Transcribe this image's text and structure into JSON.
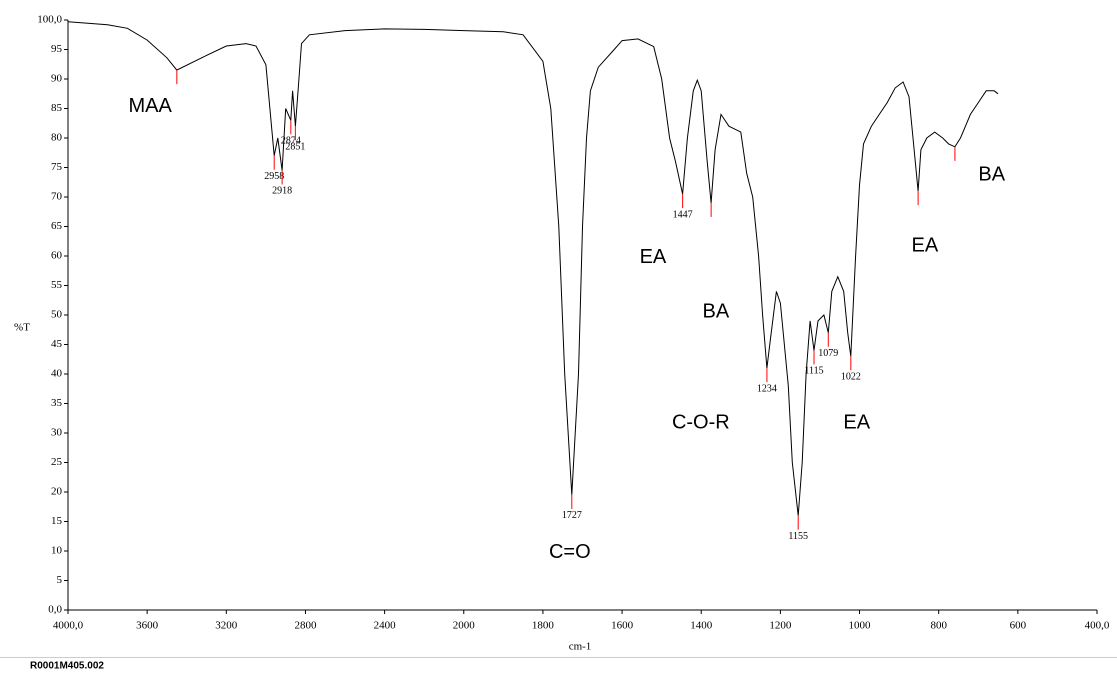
{
  "chart_data": {
    "type": "line",
    "x_label": "cm-1",
    "y_label": "%T",
    "footer": "R0001M405.002",
    "color": "#000000",
    "peak_color": "#ff0000",
    "xlim": [
      4000,
      400
    ],
    "xticks": [
      {
        "value": 4000,
        "label": "4000,0"
      },
      3600,
      3200,
      2800,
      2400,
      2000,
      1800,
      1600,
      1400,
      1200,
      1000,
      800,
      600,
      {
        "value": 400,
        "label": "400,0"
      }
    ],
    "ylim": [
      0,
      100
    ],
    "yticks": [
      {
        "value": 0,
        "label": "0,0"
      },
      5,
      10,
      15,
      20,
      25,
      30,
      35,
      40,
      45,
      50,
      55,
      60,
      65,
      70,
      75,
      80,
      85,
      90,
      95,
      {
        "value": 100,
        "label": "100,0"
      }
    ],
    "x": [
      4000,
      3800,
      3700,
      3600,
      3500,
      3450,
      3300,
      3200,
      3100,
      3050,
      3000,
      2958,
      2940,
      2918,
      2900,
      2874,
      2865,
      2851,
      2835,
      2820,
      2780,
      2600,
      2400,
      2200,
      2000,
      1900,
      1850,
      1800,
      1780,
      1760,
      1745,
      1727,
      1710,
      1700,
      1690,
      1680,
      1660,
      1620,
      1600,
      1560,
      1520,
      1500,
      1480,
      1465,
      1447,
      1435,
      1420,
      1410,
      1400,
      1385,
      1375,
      1365,
      1350,
      1330,
      1300,
      1285,
      1270,
      1255,
      1245,
      1234,
      1225,
      1210,
      1200,
      1180,
      1170,
      1155,
      1145,
      1135,
      1125,
      1115,
      1105,
      1090,
      1079,
      1070,
      1055,
      1040,
      1030,
      1022,
      1010,
      1000,
      990,
      970,
      950,
      930,
      910,
      890,
      875,
      865,
      852,
      845,
      830,
      810,
      790,
      775,
      759,
      745,
      720,
      700,
      680,
      660,
      650
    ],
    "values": [
      99.7,
      99.2,
      98.6,
      96.6,
      93.6,
      91.5,
      94,
      95.6,
      96,
      95.6,
      92.4,
      77,
      80,
      74.5,
      85,
      83,
      88,
      82,
      89,
      96,
      97.5,
      98.2,
      98.5,
      98.4,
      98.2,
      98,
      97.5,
      93,
      85,
      65,
      40,
      19.5,
      40,
      65,
      80,
      88,
      92,
      95,
      96.5,
      96.8,
      95.5,
      90,
      80,
      76,
      70.5,
      80,
      88,
      89.8,
      88,
      76,
      69,
      78,
      84,
      82,
      81,
      74,
      70,
      60,
      50,
      41,
      46,
      54,
      52,
      38,
      25,
      16,
      25,
      40,
      49,
      44,
      49,
      50,
      47,
      54,
      56.5,
      54,
      47,
      43,
      60,
      72,
      79,
      82,
      84,
      86,
      88.5,
      89.5,
      87,
      80,
      71,
      78,
      80,
      81,
      80,
      79,
      78.5,
      80,
      84,
      86,
      88,
      88,
      87.5
    ],
    "peaks": [
      {
        "x": 2958,
        "y": 77
      },
      {
        "x": 2918,
        "y": 74.5
      },
      {
        "x": 2874,
        "y": 83
      },
      {
        "x": 2851,
        "y": 82
      },
      {
        "x": 1727,
        "y": 19.5
      },
      {
        "x": 1447,
        "y": 70.5
      },
      {
        "x": 1234,
        "y": 41
      },
      {
        "x": 1155,
        "y": 16
      },
      {
        "x": 1115,
        "y": 44
      },
      {
        "x": 1079,
        "y": 47
      },
      {
        "x": 1022,
        "y": 43
      }
    ],
    "peak_marks": [
      {
        "x": 3450,
        "y": 91.5
      },
      {
        "x": 1375,
        "y": 69
      },
      {
        "x": 852,
        "y": 71
      },
      {
        "x": 759,
        "y": 78.5
      }
    ],
    "annotations": [
      {
        "text": "MAA",
        "x": 3585,
        "y": 85.3
      },
      {
        "text": "EA",
        "x": 1522,
        "y": 59.7
      },
      {
        "text": "BA",
        "x": 1363,
        "y": 50.5
      },
      {
        "text": "C-O-R",
        "x": 1401,
        "y": 31.7
      },
      {
        "text": "C=O",
        "x": 1732,
        "y": 9.7
      },
      {
        "text": "EA",
        "x": 1007,
        "y": 31.7
      },
      {
        "text": "EA",
        "x": 835,
        "y": 61.7
      },
      {
        "text": "BA",
        "x": 666,
        "y": 73.7
      }
    ]
  }
}
